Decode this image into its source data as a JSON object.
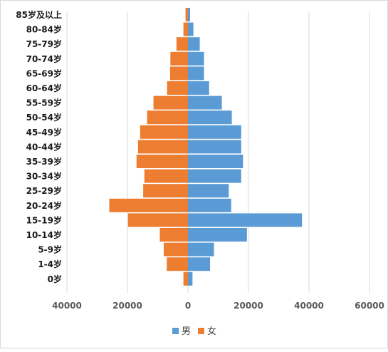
{
  "chart_data": {
    "type": "bar",
    "orientation": "horizontal",
    "stacked": "diverging",
    "categories": [
      "0岁",
      "1-4岁",
      "5-9岁",
      "10-14岁",
      "15-19岁",
      "20-24岁",
      "25-29岁",
      "30-34岁",
      "35-39岁",
      "40-44岁",
      "45-49岁",
      "50-54岁",
      "55-59岁",
      "60-64岁",
      "65-69岁",
      "70-74岁",
      "75-79岁",
      "80-84岁",
      "85岁及以上"
    ],
    "series": [
      {
        "name": "男",
        "color": "#5B9BD5",
        "values": [
          1500,
          7300,
          8600,
          19500,
          37700,
          14300,
          13500,
          17600,
          18200,
          17600,
          17600,
          14500,
          11200,
          7000,
          5300,
          5300,
          3900,
          1800,
          700
        ]
      },
      {
        "name": "女",
        "color": "#ED7D31",
        "values": [
          1500,
          7000,
          8000,
          9300,
          19800,
          26000,
          14800,
          14400,
          17000,
          16500,
          15800,
          13500,
          11400,
          6900,
          5900,
          5800,
          3800,
          1500,
          800
        ]
      }
    ],
    "xaxis": {
      "ticks": [
        -40000,
        -20000,
        0,
        20000,
        40000,
        60000
      ],
      "tick_labels": [
        "40000",
        "20000",
        "0",
        "20000",
        "40000",
        "60000"
      ],
      "range": [
        -40000,
        60000
      ]
    },
    "grid": true,
    "legend": "bottom",
    "title": "",
    "xlabel": "",
    "ylabel": ""
  }
}
